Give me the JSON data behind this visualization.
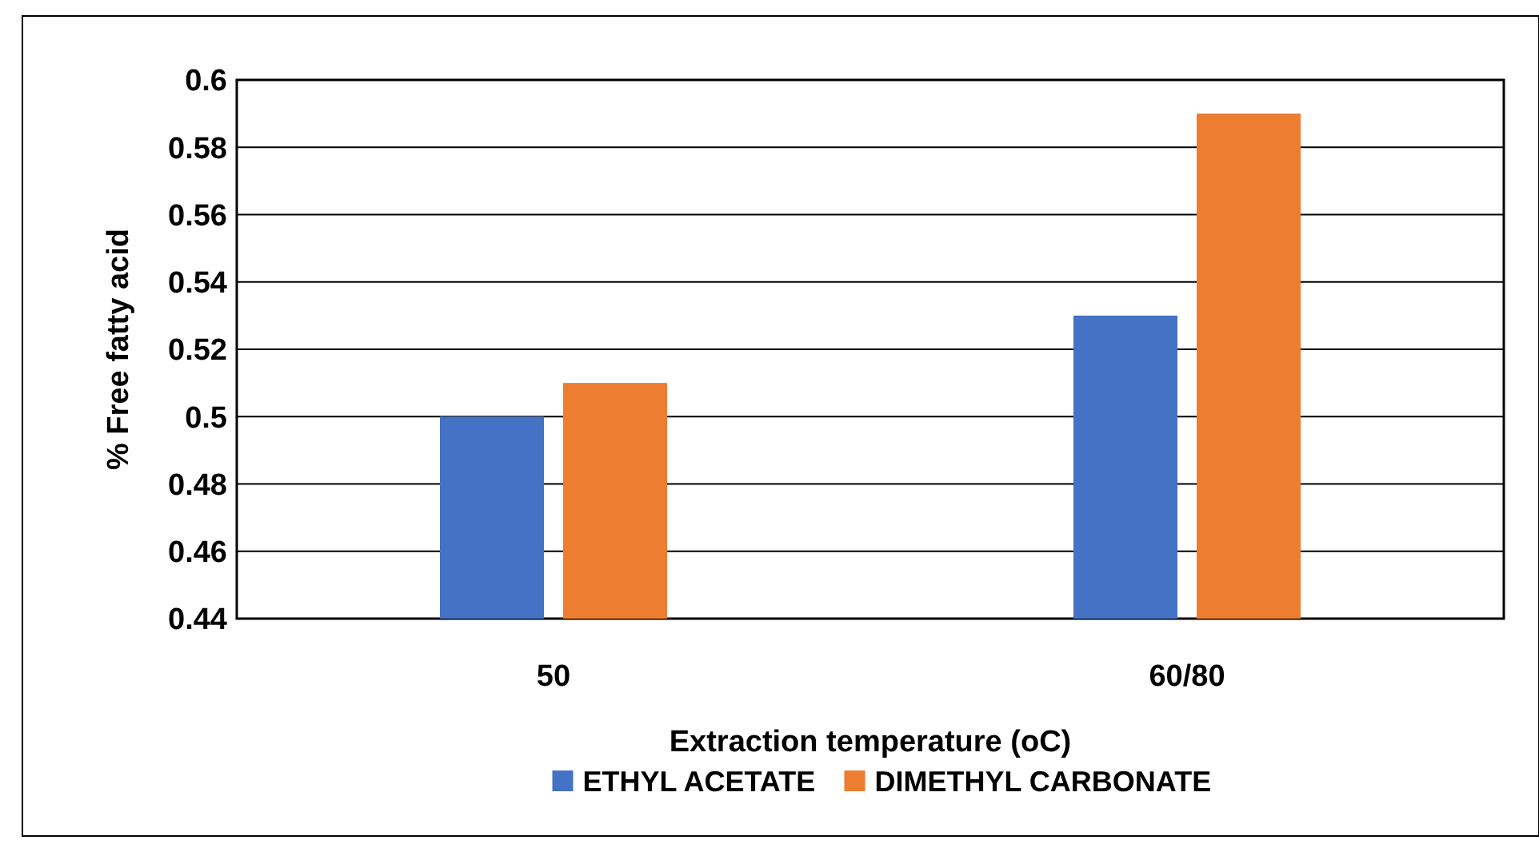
{
  "chart_data": {
    "type": "bar",
    "xlabel": "Extraction temperature (oC)",
    "ylabel": "% Free fatty acid",
    "categories": [
      "50",
      "60/80"
    ],
    "series": [
      {
        "name": "ETHYL ACETATE",
        "color": "#4472c4",
        "values": [
          0.5,
          0.53
        ]
      },
      {
        "name": "DIMETHYL CARBONATE",
        "color": "#ed7d31",
        "values": [
          0.51,
          0.59
        ]
      }
    ],
    "ylim": [
      0.44,
      0.6
    ],
    "yticks": [
      0.44,
      0.46,
      0.48,
      0.5,
      0.52,
      0.54,
      0.56,
      0.58,
      0.6
    ],
    "grid": "y",
    "legend": "bottom"
  }
}
